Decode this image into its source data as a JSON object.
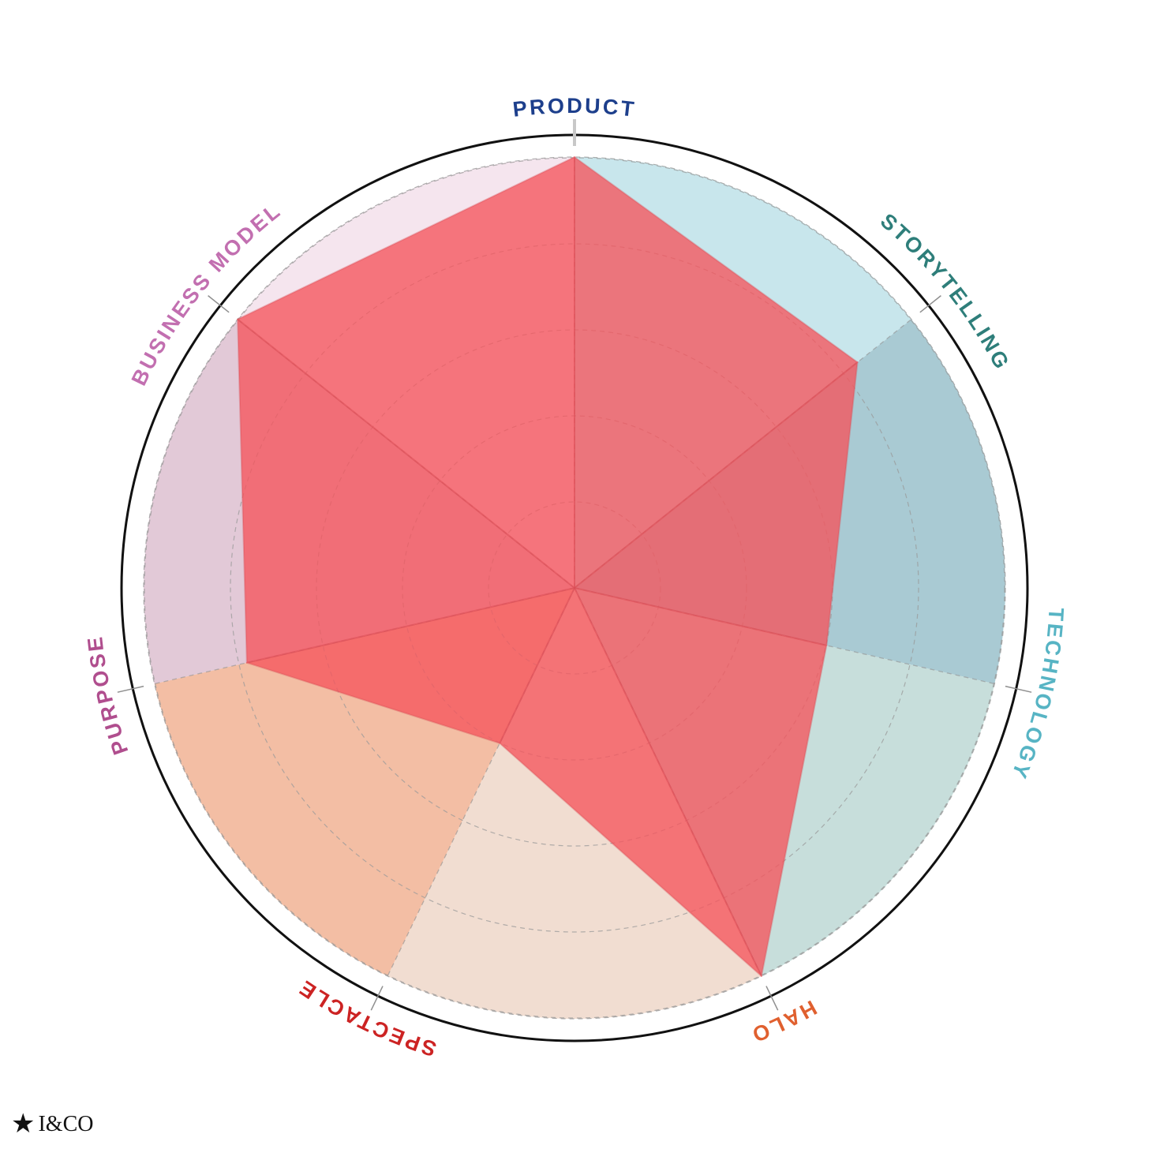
{
  "chart_data": {
    "type": "radar",
    "title": "",
    "scale": {
      "min": 0,
      "max": 5,
      "rings": 5
    },
    "axes": [
      {
        "label": "PRODUCT",
        "color": "#1d3f8c",
        "sector_fill": "#c8e6ec"
      },
      {
        "label": "STORYTELLING",
        "color": "#2e7e7a",
        "sector_fill": "#a9cad3"
      },
      {
        "label": "TECHNOLOGY",
        "color": "#57b4c4",
        "sector_fill": "#c7dedb"
      },
      {
        "label": "HALO",
        "color": "#e0602f",
        "sector_fill": "#f1ddd1"
      },
      {
        "label": "SPECTACLE",
        "color": "#cc2323",
        "sector_fill": "#f3bea4"
      },
      {
        "label": "PURPOSE",
        "color": "#b04e8e",
        "sector_fill": "#e2c9d7"
      },
      {
        "label": "BUSINESS MODEL",
        "color": "#c26fb0",
        "sector_fill": "#f5e5ee"
      }
    ],
    "series": [
      {
        "values": [
          5.0,
          4.2,
          3.0,
          5.0,
          2.0,
          3.9,
          5.0
        ],
        "color": "#f5545c",
        "opacity": 0.78
      }
    ],
    "grid": true
  },
  "brand": {
    "star": "★",
    "text": "I&CO"
  }
}
